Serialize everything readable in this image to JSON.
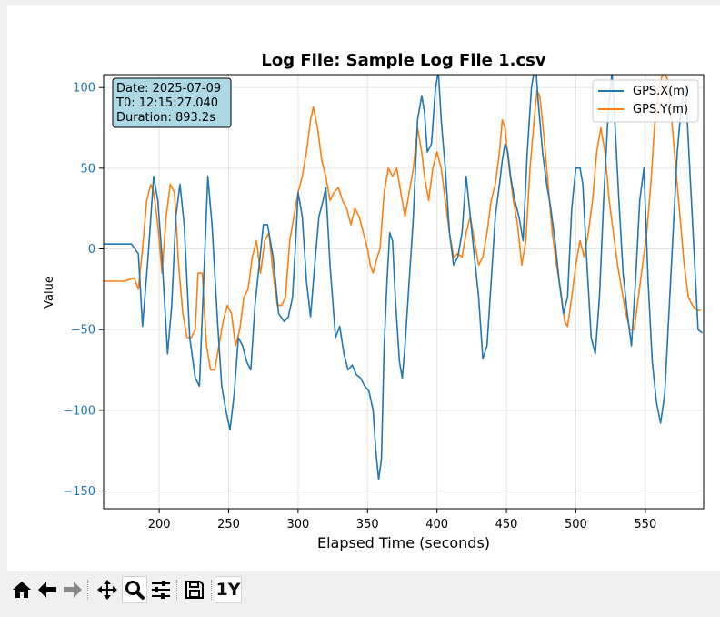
{
  "chart_data": {
    "type": "line",
    "title": "Log File: Sample Log File 1.csv",
    "xlabel": "Elapsed Time (seconds)",
    "ylabel": "Value",
    "xlim": [
      160,
      592
    ],
    "ylim": [
      -161,
      108
    ],
    "xticks": [
      200,
      250,
      300,
      350,
      400,
      450,
      500,
      550
    ],
    "yticks": [
      -150,
      -100,
      -50,
      0,
      50,
      100
    ],
    "grid": true,
    "legend_position": "top-right",
    "info_box": {
      "date": "Date: 2025-07-09",
      "t0": "T0: 12:15:27.040",
      "duration": "Duration: 893.2s"
    },
    "series": [
      {
        "name": "GPS.X(m)",
        "color": "#1f77b4",
        "points": [
          [
            160,
            3
          ],
          [
            180,
            3
          ],
          [
            185,
            -3
          ],
          [
            188,
            -48
          ],
          [
            192,
            -5
          ],
          [
            196,
            45
          ],
          [
            199,
            30
          ],
          [
            202,
            -5
          ],
          [
            206,
            -65
          ],
          [
            209,
            -35
          ],
          [
            212,
            20
          ],
          [
            215,
            40
          ],
          [
            218,
            15
          ],
          [
            222,
            -55
          ],
          [
            226,
            -80
          ],
          [
            229,
            -85
          ],
          [
            232,
            -20
          ],
          [
            235,
            45
          ],
          [
            238,
            15
          ],
          [
            242,
            -45
          ],
          [
            245,
            -85
          ],
          [
            248,
            -100
          ],
          [
            251,
            -112
          ],
          [
            254,
            -90
          ],
          [
            257,
            -55
          ],
          [
            260,
            -60
          ],
          [
            263,
            -70
          ],
          [
            266,
            -75
          ],
          [
            269,
            -35
          ],
          [
            272,
            -10
          ],
          [
            275,
            15
          ],
          [
            278,
            15
          ],
          [
            282,
            -5
          ],
          [
            286,
            -40
          ],
          [
            290,
            -45
          ],
          [
            293,
            -42
          ],
          [
            296,
            -30
          ],
          [
            298,
            0
          ],
          [
            300,
            35
          ],
          [
            303,
            20
          ],
          [
            306,
            -20
          ],
          [
            309,
            -42
          ],
          [
            312,
            -10
          ],
          [
            315,
            20
          ],
          [
            318,
            30
          ],
          [
            320,
            38
          ],
          [
            323,
            -10
          ],
          [
            327,
            -55
          ],
          [
            330,
            -48
          ],
          [
            333,
            -65
          ],
          [
            336,
            -75
          ],
          [
            339,
            -72
          ],
          [
            342,
            -78
          ],
          [
            345,
            -80
          ],
          [
            348,
            -85
          ],
          [
            351,
            -88
          ],
          [
            354,
            -100
          ],
          [
            356,
            -125
          ],
          [
            358,
            -143
          ],
          [
            360,
            -130
          ],
          [
            362,
            -60
          ],
          [
            364,
            -20
          ],
          [
            366,
            10
          ],
          [
            368,
            5
          ],
          [
            370,
            -30
          ],
          [
            373,
            -70
          ],
          [
            375,
            -80
          ],
          [
            377,
            -60
          ],
          [
            380,
            -20
          ],
          [
            383,
            20
          ],
          [
            386,
            80
          ],
          [
            389,
            95
          ],
          [
            391,
            85
          ],
          [
            393,
            60
          ],
          [
            396,
            65
          ],
          [
            399,
            100
          ],
          [
            401,
            110
          ],
          [
            403,
            80
          ],
          [
            406,
            50
          ],
          [
            409,
            10
          ],
          [
            412,
            -10
          ],
          [
            415,
            -5
          ],
          [
            418,
            10
          ],
          [
            421,
            45
          ],
          [
            424,
            20
          ],
          [
            427,
            -5
          ],
          [
            430,
            -30
          ],
          [
            433,
            -68
          ],
          [
            436,
            -60
          ],
          [
            439,
            -20
          ],
          [
            442,
            20
          ],
          [
            445,
            40
          ],
          [
            447,
            55
          ],
          [
            449,
            65
          ],
          [
            451,
            60
          ],
          [
            453,
            45
          ],
          [
            456,
            30
          ],
          [
            459,
            20
          ],
          [
            462,
            5
          ],
          [
            465,
            60
          ],
          [
            468,
            100
          ],
          [
            471,
            115
          ],
          [
            473,
            90
          ],
          [
            476,
            60
          ],
          [
            479,
            40
          ],
          [
            482,
            25
          ],
          [
            485,
            5
          ],
          [
            488,
            -20
          ],
          [
            491,
            -40
          ],
          [
            494,
            -30
          ],
          [
            497,
            25
          ],
          [
            500,
            50
          ],
          [
            503,
            50
          ],
          [
            505,
            40
          ],
          [
            508,
            -10
          ],
          [
            511,
            -55
          ],
          [
            514,
            -65
          ],
          [
            517,
            -30
          ],
          [
            520,
            30
          ],
          [
            523,
            80
          ],
          [
            526,
            110
          ],
          [
            528,
            80
          ],
          [
            531,
            30
          ],
          [
            534,
            -15
          ],
          [
            537,
            -40
          ],
          [
            540,
            -60
          ],
          [
            543,
            -20
          ],
          [
            546,
            30
          ],
          [
            549,
            50
          ],
          [
            552,
            -20
          ],
          [
            555,
            -70
          ],
          [
            558,
            -95
          ],
          [
            561,
            -108
          ],
          [
            564,
            -90
          ],
          [
            567,
            -40
          ],
          [
            570,
            10
          ],
          [
            573,
            60
          ],
          [
            576,
            90
          ],
          [
            579,
            100
          ],
          [
            582,
            50
          ],
          [
            585,
            0
          ],
          [
            588,
            -50
          ],
          [
            591,
            -52
          ]
        ]
      },
      {
        "name": "GPS.Y(m)",
        "color": "#ff7f0e",
        "points": [
          [
            160,
            -20
          ],
          [
            175,
            -20
          ],
          [
            182,
            -18
          ],
          [
            185,
            -25
          ],
          [
            188,
            0
          ],
          [
            191,
            30
          ],
          [
            194,
            40
          ],
          [
            196,
            35
          ],
          [
            199,
            15
          ],
          [
            202,
            -15
          ],
          [
            205,
            20
          ],
          [
            208,
            40
          ],
          [
            211,
            35
          ],
          [
            214,
            -10
          ],
          [
            217,
            -40
          ],
          [
            220,
            -55
          ],
          [
            223,
            -55
          ],
          [
            226,
            -50
          ],
          [
            228,
            -15
          ],
          [
            231,
            -15
          ],
          [
            234,
            -60
          ],
          [
            237,
            -75
          ],
          [
            240,
            -75
          ],
          [
            243,
            -60
          ],
          [
            246,
            -45
          ],
          [
            249,
            -35
          ],
          [
            252,
            -40
          ],
          [
            255,
            -60
          ],
          [
            258,
            -50
          ],
          [
            261,
            -30
          ],
          [
            264,
            -25
          ],
          [
            267,
            -5
          ],
          [
            270,
            5
          ],
          [
            273,
            -15
          ],
          [
            276,
            5
          ],
          [
            279,
            10
          ],
          [
            282,
            -15
          ],
          [
            285,
            -35
          ],
          [
            288,
            -35
          ],
          [
            291,
            -30
          ],
          [
            294,
            5
          ],
          [
            297,
            20
          ],
          [
            300,
            35
          ],
          [
            303,
            45
          ],
          [
            306,
            60
          ],
          [
            309,
            80
          ],
          [
            311,
            88
          ],
          [
            314,
            75
          ],
          [
            317,
            55
          ],
          [
            320,
            45
          ],
          [
            323,
            30
          ],
          [
            326,
            35
          ],
          [
            329,
            38
          ],
          [
            332,
            30
          ],
          [
            335,
            25
          ],
          [
            338,
            15
          ],
          [
            341,
            25
          ],
          [
            344,
            20
          ],
          [
            347,
            10
          ],
          [
            350,
            0
          ],
          [
            352,
            -10
          ],
          [
            354,
            -15
          ],
          [
            357,
            -5
          ],
          [
            359,
            0
          ],
          [
            362,
            35
          ],
          [
            365,
            50
          ],
          [
            368,
            45
          ],
          [
            371,
            50
          ],
          [
            374,
            35
          ],
          [
            377,
            20
          ],
          [
            380,
            35
          ],
          [
            383,
            50
          ],
          [
            386,
            75
          ],
          [
            389,
            60
          ],
          [
            391,
            45
          ],
          [
            394,
            30
          ],
          [
            397,
            50
          ],
          [
            400,
            60
          ],
          [
            403,
            50
          ],
          [
            406,
            30
          ],
          [
            409,
            10
          ],
          [
            412,
            -5
          ],
          [
            415,
            -3
          ],
          [
            418,
            -5
          ],
          [
            421,
            10
          ],
          [
            424,
            20
          ],
          [
            427,
            5
          ],
          [
            430,
            -10
          ],
          [
            433,
            -5
          ],
          [
            436,
            10
          ],
          [
            439,
            30
          ],
          [
            442,
            40
          ],
          [
            445,
            60
          ],
          [
            447,
            80
          ],
          [
            449,
            75
          ],
          [
            452,
            50
          ],
          [
            455,
            30
          ],
          [
            458,
            15
          ],
          [
            461,
            -10
          ],
          [
            464,
            5
          ],
          [
            467,
            50
          ],
          [
            470,
            80
          ],
          [
            472,
            98
          ],
          [
            474,
            95
          ],
          [
            477,
            70
          ],
          [
            480,
            40
          ],
          [
            483,
            10
          ],
          [
            486,
            -10
          ],
          [
            489,
            -25
          ],
          [
            492,
            -45
          ],
          [
            494,
            -48
          ],
          [
            497,
            -30
          ],
          [
            500,
            -10
          ],
          [
            503,
            5
          ],
          [
            506,
            -5
          ],
          [
            509,
            10
          ],
          [
            512,
            30
          ],
          [
            515,
            60
          ],
          [
            518,
            75
          ],
          [
            521,
            60
          ],
          [
            524,
            30
          ],
          [
            527,
            10
          ],
          [
            530,
            -10
          ],
          [
            533,
            -25
          ],
          [
            536,
            -40
          ],
          [
            539,
            -50
          ],
          [
            542,
            -50
          ],
          [
            545,
            -30
          ],
          [
            548,
            -10
          ],
          [
            551,
            10
          ],
          [
            554,
            40
          ],
          [
            557,
            80
          ],
          [
            560,
            100
          ],
          [
            563,
            110
          ],
          [
            566,
            105
          ],
          [
            569,
            80
          ],
          [
            572,
            50
          ],
          [
            575,
            20
          ],
          [
            578,
            -10
          ],
          [
            581,
            -30
          ],
          [
            584,
            -35
          ],
          [
            587,
            -38
          ],
          [
            590,
            -38
          ]
        ]
      }
    ]
  },
  "toolbar": {
    "buttons": [
      {
        "name": "home",
        "icon": "home-icon"
      },
      {
        "name": "back",
        "icon": "arrow-left-icon"
      },
      {
        "name": "forward",
        "icon": "arrow-right-icon"
      },
      {
        "name": "pan",
        "icon": "move-icon"
      },
      {
        "name": "zoom",
        "icon": "zoom-icon"
      },
      {
        "name": "configure",
        "icon": "sliders-icon"
      },
      {
        "name": "save",
        "icon": "save-icon"
      }
    ],
    "extra_label": "1Y"
  }
}
